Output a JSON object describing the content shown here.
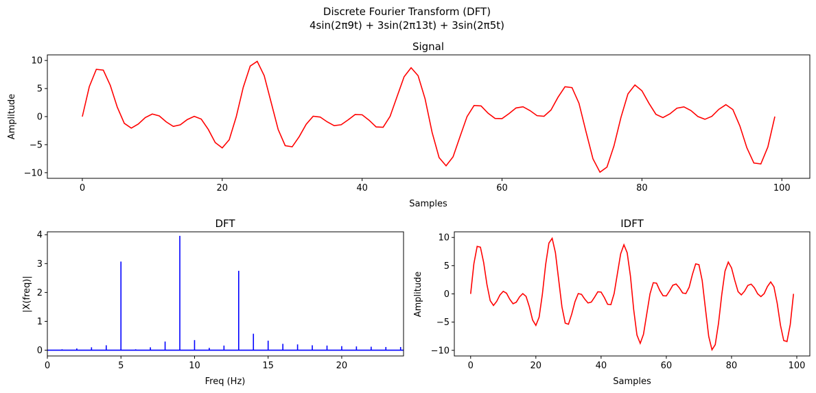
{
  "figure": {
    "suptitle_line1": "Discrete Fourier Transform (DFT)",
    "suptitle_line2": "4sin(2π9t) + 3sin(2π13t) + 3sin(2π5t)"
  },
  "colors": {
    "signal": "#ff0000",
    "dft": "#0000ff",
    "axis": "#000000"
  },
  "chart_data": [
    {
      "id": "signal",
      "type": "line",
      "title": "Signal",
      "xlabel": "Samples",
      "ylabel": "Amplitude",
      "xlim": [
        -5,
        104
      ],
      "ylim": [
        -11,
        11
      ],
      "xticks": [
        0,
        20,
        40,
        60,
        80,
        100
      ],
      "yticks": [
        -10,
        -5,
        0,
        5,
        10
      ],
      "grid": false,
      "x": [
        0,
        1,
        2,
        3,
        4,
        5,
        6,
        7,
        8,
        9,
        10,
        11,
        12,
        13,
        14,
        15,
        16,
        17,
        18,
        19,
        20,
        21,
        22,
        23,
        24,
        25,
        26,
        27,
        28,
        29,
        30,
        31,
        32,
        33,
        34,
        35,
        36,
        37,
        38,
        39,
        40,
        41,
        42,
        43,
        44,
        45,
        46,
        47,
        48,
        49,
        50,
        51,
        52,
        53,
        54,
        55,
        56,
        57,
        58,
        59,
        60,
        61,
        62,
        63,
        64,
        65,
        66,
        67,
        68,
        69,
        70,
        71,
        72,
        73,
        74,
        75,
        76,
        77,
        78,
        79,
        80,
        81,
        82,
        83,
        84,
        85,
        86,
        87,
        88,
        89,
        90,
        91,
        92,
        93,
        94,
        95,
        96,
        97,
        98,
        99
      ],
      "y": [
        0,
        5.35,
        8.42,
        8.28,
        5.55,
        1.67,
        -1.2,
        -2.05,
        -1.32,
        -0.18,
        0.46,
        0.12,
        -0.95,
        -1.75,
        -1.47,
        -0.53,
        0.05,
        -0.45,
        -2.27,
        -4.63,
        -5.58,
        -4.12,
        -0.05,
        5.2,
        9.01,
        9.85,
        7.3,
        2.49,
        -2.31,
        -5.18,
        -5.38,
        -3.58,
        -1.37,
        0.06,
        -0.08,
        -0.93,
        -1.61,
        -1.45,
        -0.58,
        0.37,
        0.32,
        -0.65,
        -1.84,
        -1.9,
        0.06,
        3.59,
        7.1,
        8.71,
        7.29,
        3.16,
        -2.8,
        -7.3,
        -8.77,
        -7.16,
        -3.55,
        0.01,
        1.98,
        1.9,
        0.61,
        -0.33,
        -0.36,
        0.53,
        1.54,
        1.75,
        1.07,
        0.17,
        0.06,
        1.18,
        3.44,
        5.32,
        5.17,
        2.37,
        -2.66,
        -7.53,
        -9.91,
        -9.0,
        -5.23,
        -0.14,
        4.05,
        5.64,
        4.6,
        2.38,
        0.4,
        -0.18,
        0.49,
        1.5,
        1.73,
        1.08,
        0.01,
        -0.48,
        0.05,
        1.3,
        2.12,
        1.25,
        -1.67,
        -5.56,
        -8.27,
        -8.44,
        -5.42,
        0.01
      ]
    },
    {
      "id": "dft",
      "type": "stem",
      "title": "DFT",
      "xlabel": "Freq (Hz)",
      "ylabel": "|X(freq)|",
      "xlim": [
        0,
        24.2
      ],
      "ylim": [
        -0.2,
        4.1
      ],
      "xticks": [
        0,
        5,
        10,
        15,
        20
      ],
      "yticks": [
        0,
        1,
        2,
        3,
        4
      ],
      "grid": false,
      "x": [
        0,
        1,
        2,
        3,
        4,
        5,
        6,
        7,
        8,
        9,
        10,
        11,
        12,
        13,
        14,
        15,
        16,
        17,
        18,
        19,
        20,
        21,
        22,
        23,
        24
      ],
      "y": [
        0,
        0.03,
        0.06,
        0.1,
        0.17,
        3.07,
        0.03,
        0.1,
        0.3,
        3.96,
        0.35,
        0.08,
        0.16,
        2.75,
        0.57,
        0.33,
        0.22,
        0.2,
        0.17,
        0.16,
        0.14,
        0.13,
        0.12,
        0.11,
        0.11
      ]
    },
    {
      "id": "idft",
      "type": "line",
      "title": "IDFT",
      "xlabel": "Samples",
      "ylabel": "Amplitude",
      "xlim": [
        -5,
        104
      ],
      "ylim": [
        -11,
        11
      ],
      "xticks": [
        0,
        20,
        40,
        60,
        80,
        100
      ],
      "yticks": [
        -10,
        -5,
        0,
        5,
        10
      ],
      "grid": false,
      "use_series_of": "signal"
    }
  ]
}
